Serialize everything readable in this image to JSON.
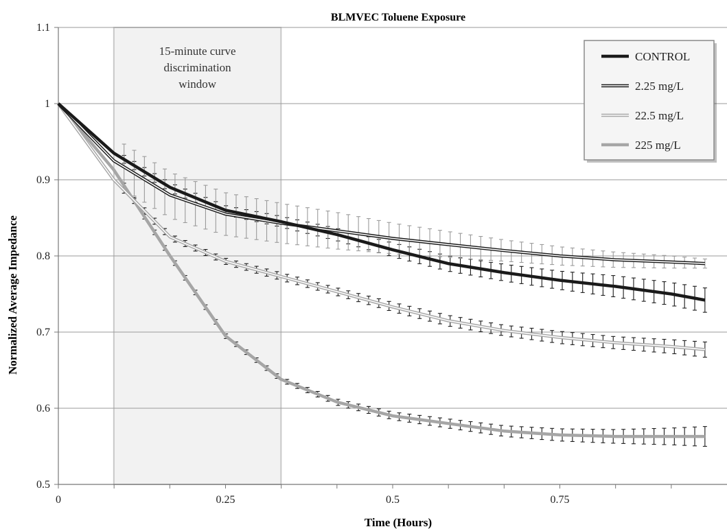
{
  "chart_data": {
    "type": "line",
    "title": "BLMVEC Toluene Exposure",
    "xlabel": "Time (Hours)",
    "ylabel": "Normalized Average Impedance",
    "xlim": [
      0,
      1.0
    ],
    "ylim": [
      0.5,
      1.1
    ],
    "x_ticks": [
      0,
      0.25,
      0.5,
      0.75
    ],
    "x_tick_labels": [
      "0",
      "0.25",
      "0.5",
      "0.75"
    ],
    "y_ticks": [
      0.5,
      0.6,
      0.7,
      0.8,
      0.9,
      1.0,
      1.1
    ],
    "y_tick_labels": [
      "0.5",
      "0.6",
      "0.7",
      "0.8",
      "0.9",
      "1",
      "1.1"
    ],
    "grid": "horizontal",
    "legend_position": "top-right",
    "shaded_region": {
      "x_start": 0.083,
      "x_end": 0.333,
      "label": "15-minute curve discrimination window"
    },
    "series": [
      {
        "name": "CONTROL",
        "color": "#1a1a1a",
        "style": "solid-thick",
        "x": [
          0,
          0.083,
          0.167,
          0.25,
          0.333,
          0.417,
          0.5,
          0.583,
          0.667,
          0.75,
          0.833,
          0.917,
          0.967
        ],
        "values": [
          1.0,
          0.935,
          0.89,
          0.86,
          0.845,
          0.828,
          0.808,
          0.79,
          0.778,
          0.768,
          0.76,
          0.75,
          0.742
        ],
        "error": [
          0,
          0.005,
          0.006,
          0.006,
          0.007,
          0.008,
          0.009,
          0.01,
          0.011,
          0.012,
          0.014,
          0.015,
          0.016
        ]
      },
      {
        "name": "2.25 mg/L",
        "color": "#1a1a1a",
        "style": "double-dark",
        "x": [
          0,
          0.083,
          0.167,
          0.25,
          0.333,
          0.417,
          0.5,
          0.583,
          0.667,
          0.75,
          0.833,
          0.917,
          0.967
        ],
        "values": [
          1.0,
          0.925,
          0.88,
          0.855,
          0.843,
          0.833,
          0.823,
          0.815,
          0.807,
          0.8,
          0.795,
          0.792,
          0.79
        ],
        "error": [
          0,
          0.03,
          0.03,
          0.028,
          0.026,
          0.024,
          0.02,
          0.017,
          0.014,
          0.012,
          0.01,
          0.008,
          0.006
        ]
      },
      {
        "name": "22.5 mg/L",
        "color": "#a6a6a6",
        "style": "double-light",
        "x": [
          0,
          0.083,
          0.167,
          0.25,
          0.333,
          0.417,
          0.5,
          0.583,
          0.667,
          0.75,
          0.833,
          0.917,
          0.967
        ],
        "values": [
          1.0,
          0.9,
          0.825,
          0.793,
          0.773,
          0.753,
          0.733,
          0.715,
          0.702,
          0.693,
          0.686,
          0.681,
          0.677
        ],
        "error": [
          0,
          0.004,
          0.004,
          0.004,
          0.005,
          0.005,
          0.006,
          0.007,
          0.007,
          0.008,
          0.008,
          0.009,
          0.01
        ]
      },
      {
        "name": "225 mg/L",
        "color": "#a6a6a6",
        "style": "solid-thick",
        "x": [
          0,
          0.083,
          0.167,
          0.25,
          0.333,
          0.417,
          0.5,
          0.583,
          0.667,
          0.75,
          0.833,
          0.917,
          0.967
        ],
        "values": [
          1.0,
          0.913,
          0.8,
          0.695,
          0.638,
          0.608,
          0.59,
          0.58,
          0.57,
          0.565,
          0.563,
          0.563,
          0.563
        ],
        "error": [
          0,
          0.003,
          0.003,
          0.003,
          0.003,
          0.004,
          0.005,
          0.006,
          0.007,
          0.008,
          0.009,
          0.011,
          0.013
        ]
      }
    ]
  }
}
